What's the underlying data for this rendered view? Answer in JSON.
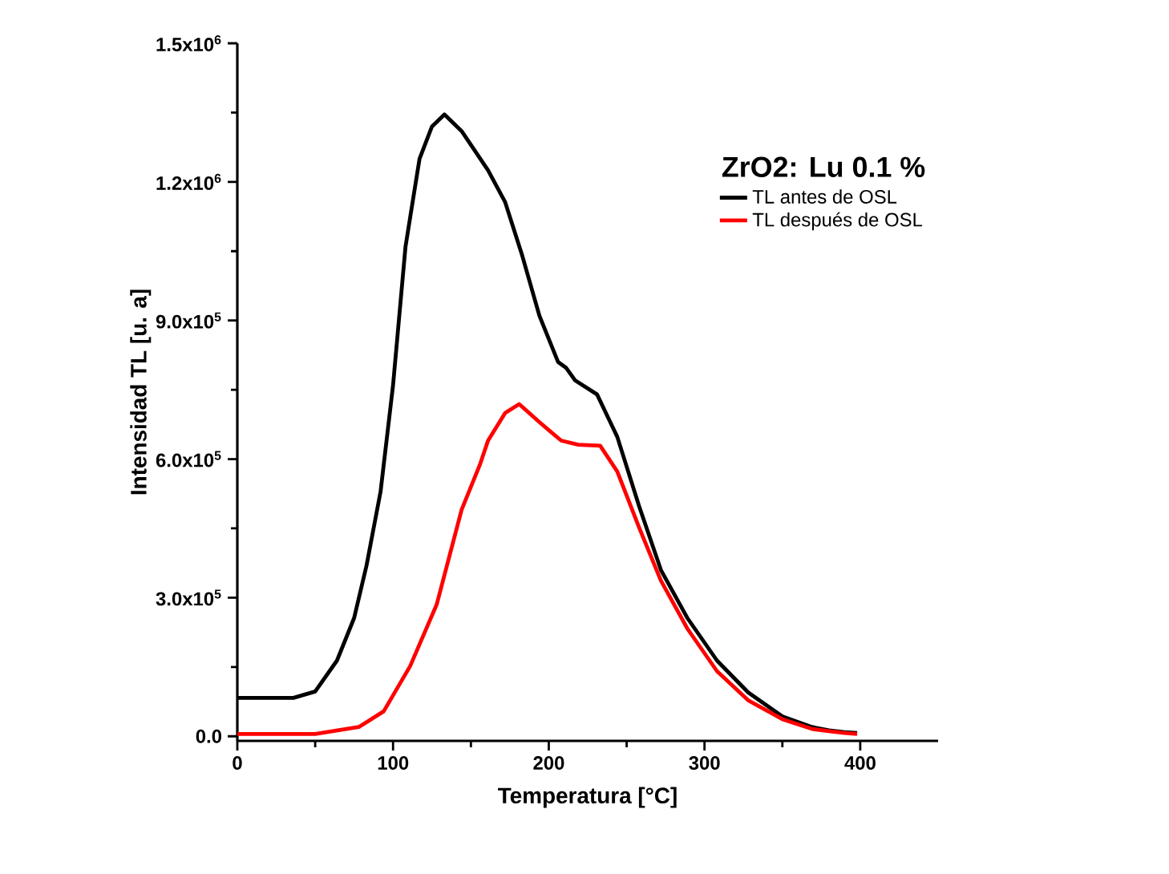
{
  "chart_data": {
    "type": "line",
    "xlabel": "Temperatura [°C]",
    "ylabel": "Intensidad TL [u. a]",
    "legend_title": "ZrO2: Lu 0.1 %",
    "legend": "top right",
    "xlim": [
      0,
      450
    ],
    "xticks": [
      0,
      100,
      200,
      300,
      400
    ],
    "ylim": [
      -10000,
      1500000
    ],
    "yticks": [
      {
        "value": 0,
        "label": "0.0"
      },
      {
        "value": 300000,
        "label": "3.0x10$^{5}$"
      },
      {
        "value": 600000,
        "label": "6.0x10$^{5}$"
      },
      {
        "value": 900000,
        "label": "9.0x10$^{5}$"
      },
      {
        "value": 1200000,
        "label": "1.2x10$^{6}$"
      },
      {
        "value": 1500000,
        "label": "1.5x10$^{6}$"
      }
    ],
    "marker": "none",
    "line_style": "solid",
    "grid": false,
    "series": [
      {
        "name": "TL antes de OSL",
        "color": "#000000",
        "x": [
          0,
          20,
          36,
          50,
          64,
          75,
          83,
          92,
          100,
          108,
          117,
          125,
          133,
          144,
          161,
          172,
          183,
          194,
          206,
          211,
          217,
          231,
          244,
          258,
          272,
          289,
          308,
          328,
          350,
          369,
          380,
          390,
          398
        ],
        "values": [
          83000,
          83000,
          83000,
          97000,
          164000,
          256000,
          370000,
          530000,
          760000,
          1060000,
          1250000,
          1320000,
          1346000,
          1310000,
          1225000,
          1156000,
          1040000,
          910000,
          810000,
          798000,
          770000,
          740000,
          648000,
          498000,
          360000,
          256000,
          164000,
          95000,
          43000,
          20000,
          13000,
          9000,
          7000
        ]
      },
      {
        "name": "TL después de OSL",
        "color": "#ff0000",
        "x": [
          0,
          50,
          78,
          94,
          111,
          128,
          144,
          156,
          161,
          172,
          181,
          194,
          203,
          208,
          219,
          233,
          244,
          258,
          272,
          289,
          308,
          328,
          350,
          369,
          380,
          390,
          398
        ],
        "values": [
          5000,
          5000,
          20000,
          54000,
          152000,
          285000,
          490000,
          590000,
          640000,
          700000,
          719000,
          680000,
          654000,
          640000,
          631000,
          629000,
          573000,
          452000,
          337000,
          233000,
          141000,
          78000,
          37000,
          16000,
          11000,
          7000,
          5000
        ]
      }
    ]
  }
}
